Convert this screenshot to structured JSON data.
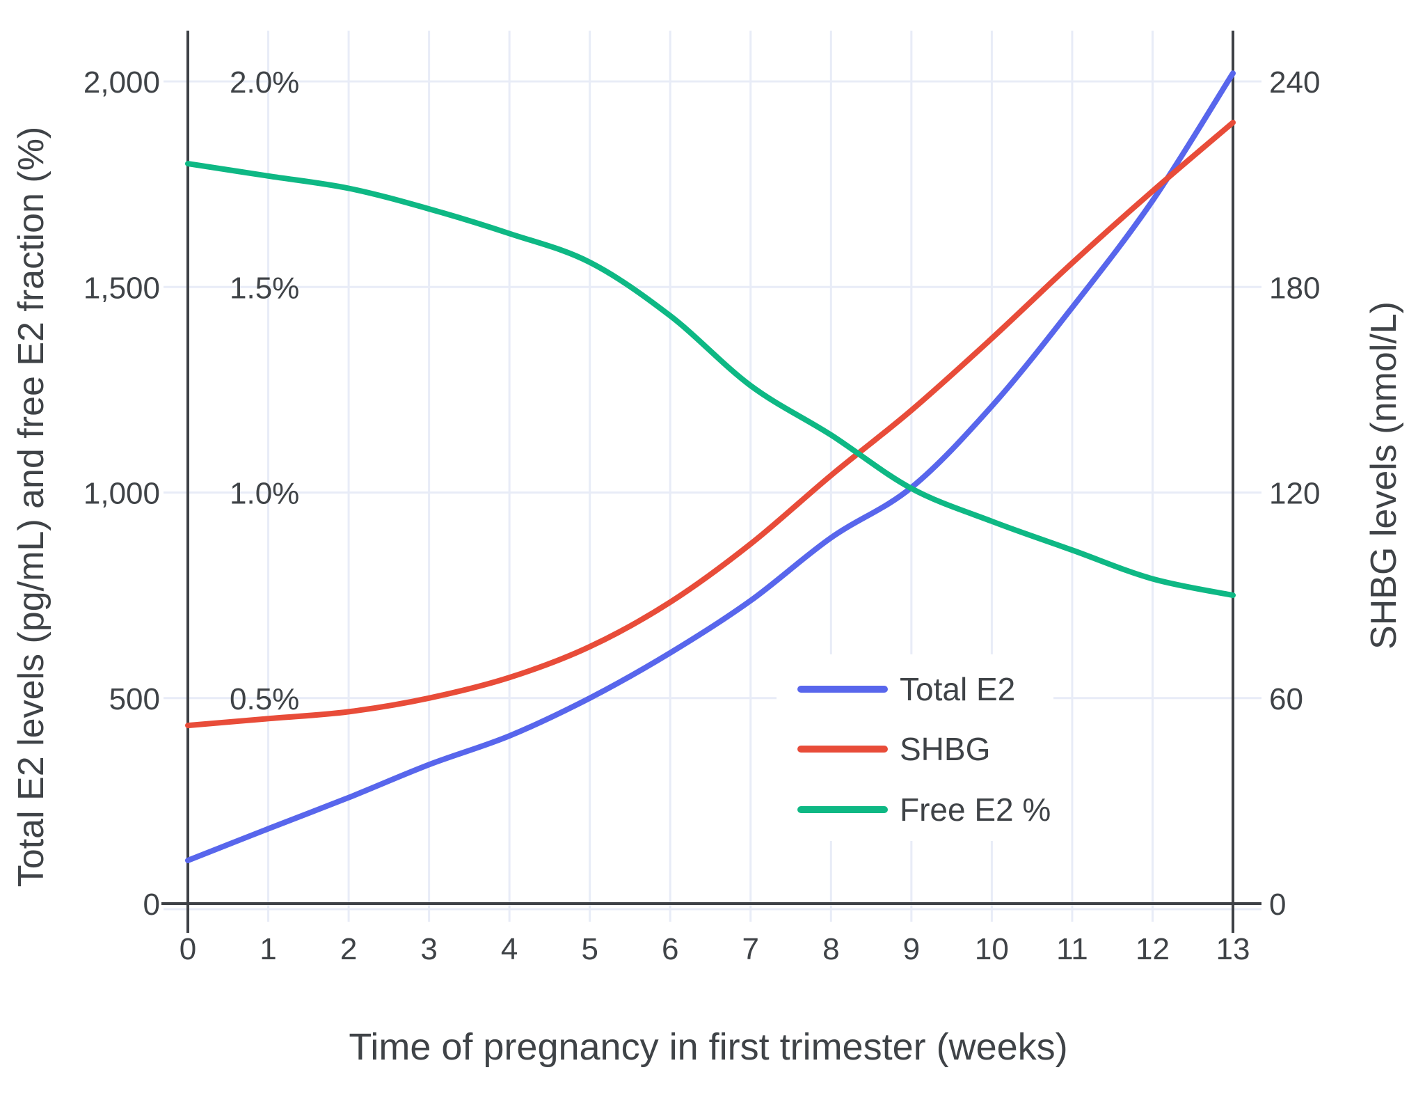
{
  "chart_data": {
    "type": "line",
    "title": "",
    "xlabel": "Time of pregnancy in first trimester (weeks)",
    "ylabel_left": "Total E2 levels (pg/mL) and free E2 fraction (%)",
    "ylabel_right": "SHBG levels (nmol/L)",
    "x": [
      0,
      1,
      2,
      3,
      4,
      5,
      6,
      7,
      8,
      9,
      10,
      11,
      12,
      13
    ],
    "series": [
      {
        "name": "Total E2",
        "axis": "left",
        "unit": "pg/mL",
        "color": "#5866ec",
        "values": [
          105,
          182,
          258,
          338,
          408,
          500,
          610,
          737,
          890,
          1012,
          1210,
          1450,
          1710,
          2020
        ]
      },
      {
        "name": "SHBG",
        "axis": "right",
        "unit": "nmol/L",
        "color": "#e84c39",
        "values": [
          52,
          54,
          56,
          60,
          66,
          75,
          88,
          105,
          125,
          144,
          165,
          187,
          208,
          228
        ]
      },
      {
        "name": "Free E2 %",
        "axis": "left-percent",
        "unit": "%",
        "color": "#0eb884",
        "values": [
          1.8,
          1.77,
          1.74,
          1.69,
          1.63,
          1.56,
          1.43,
          1.26,
          1.14,
          1.01,
          0.93,
          0.86,
          0.79,
          0.75
        ]
      }
    ],
    "axes": {
      "left_axis_range_pg_ml": [
        0,
        2000
      ],
      "right_axis_range_nmol_l": [
        0,
        240
      ],
      "percent_scale_range": [
        0,
        2.0
      ],
      "left_ticks": [
        {
          "v": 0,
          "label": "0"
        },
        {
          "v": 500,
          "label": "500"
        },
        {
          "v": 1000,
          "label": "1,000"
        },
        {
          "v": 1500,
          "label": "1,500"
        },
        {
          "v": 2000,
          "label": "2,000"
        }
      ],
      "left_percent_ticks": [
        {
          "v": 500,
          "label": "0.5%"
        },
        {
          "v": 1000,
          "label": "1.0%"
        },
        {
          "v": 1500,
          "label": "1.5%"
        },
        {
          "v": 2000,
          "label": "2.0%"
        }
      ],
      "right_ticks": [
        {
          "v": 0,
          "label": "0"
        },
        {
          "v": 60,
          "label": "60"
        },
        {
          "v": 120,
          "label": "120"
        },
        {
          "v": 180,
          "label": "180"
        },
        {
          "v": 240,
          "label": "240"
        }
      ],
      "x_ticks": [
        "0",
        "1",
        "2",
        "3",
        "4",
        "5",
        "6",
        "7",
        "8",
        "9",
        "10",
        "11",
        "12",
        "13"
      ]
    },
    "legend_position": "inside-middle-right",
    "grid": true
  },
  "style": {
    "grid_color": "#e8ecf7",
    "axis_color": "#3e4146",
    "text_color": "#3f4347",
    "background": "#ffffff"
  }
}
